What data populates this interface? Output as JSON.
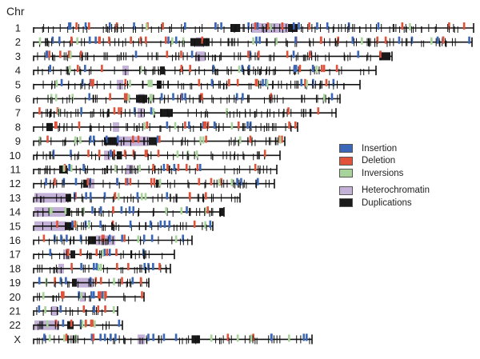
{
  "axis_title": "Chr",
  "legend": [
    {
      "label": "Insertion",
      "color": "#3a67b8"
    },
    {
      "label": "Deletion",
      "color": "#e0533a"
    },
    {
      "label": "Inversions",
      "color": "#a8d39a"
    },
    {
      "label": "Heterochromatin",
      "color": "#c4b1d8"
    },
    {
      "label": "Duplications",
      "color": "#1a1a1a"
    }
  ],
  "chromosomes": [
    {
      "label": "1",
      "end": 592,
      "hetero": [
        [
          314,
          360
        ]
      ],
      "dup": [
        [
          288,
          300
        ],
        [
          360,
          372
        ]
      ]
    },
    {
      "label": "2",
      "end": 590,
      "hetero": [
        [
          245,
          253
        ]
      ],
      "dup": [
        [
          238,
          262
        ]
      ]
    },
    {
      "label": "3",
      "end": 490,
      "hetero": [
        [
          245,
          256
        ]
      ],
      "dup": [
        [
          474,
          488
        ]
      ]
    },
    {
      "label": "4",
      "end": 470,
      "hetero": [
        [
          153,
          161
        ]
      ],
      "dup": [
        [
          200,
          206
        ]
      ]
    },
    {
      "label": "5",
      "end": 450,
      "hetero": [
        [
          146,
          154
        ]
      ],
      "dup": [
        [
          196,
          202
        ]
      ]
    },
    {
      "label": "6",
      "end": 425,
      "hetero": [
        [
          173,
          181
        ]
      ],
      "dup": [
        [
          170,
          184
        ]
      ]
    },
    {
      "label": "7",
      "end": 420,
      "hetero": [
        [
          172,
          180
        ]
      ],
      "dup": [
        [
          200,
          216
        ]
      ]
    },
    {
      "label": "8",
      "end": 372,
      "hetero": [
        [
          141,
          149
        ]
      ],
      "dup": [
        [
          58,
          66
        ]
      ]
    },
    {
      "label": "9",
      "end": 356,
      "hetero": [
        [
          146,
          186
        ]
      ],
      "dup": [
        [
          130,
          146
        ],
        [
          186,
          196
        ]
      ]
    },
    {
      "label": "10",
      "end": 350,
      "hetero": [
        [
          130,
          138
        ]
      ],
      "dup": [
        [
          146,
          152
        ]
      ]
    },
    {
      "label": "11",
      "end": 346,
      "hetero": [
        [
          158,
          166
        ]
      ],
      "dup": [
        [
          74,
          84
        ]
      ]
    },
    {
      "label": "12",
      "end": 343,
      "hetero": [
        [
          110,
          118
        ]
      ],
      "dup": [
        [
          104,
          110
        ]
      ]
    },
    {
      "label": "13",
      "end": 300,
      "hetero": [
        [
          43,
          82
        ]
      ],
      "dup": [
        [
          82,
          88
        ]
      ]
    },
    {
      "label": "14",
      "end": 280,
      "hetero": [
        [
          43,
          82
        ]
      ],
      "dup": [
        [
          82,
          88
        ],
        [
          274,
          280
        ]
      ]
    },
    {
      "label": "15",
      "end": 266,
      "hetero": [
        [
          43,
          82
        ]
      ],
      "dup": [
        [
          82,
          92
        ]
      ]
    },
    {
      "label": "16",
      "end": 240,
      "hetero": [
        [
          120,
          144
        ]
      ],
      "dup": [
        [
          110,
          120
        ]
      ]
    },
    {
      "label": "17",
      "end": 218,
      "hetero": [
        [
          79,
          87
        ]
      ],
      "dup": [
        [
          88,
          94
        ]
      ]
    },
    {
      "label": "18",
      "end": 213,
      "hetero": [
        [
          73,
          80
        ]
      ],
      "dup": []
    },
    {
      "label": "19",
      "end": 186,
      "hetero": [
        [
          96,
          116
        ]
      ],
      "dup": [
        [
          90,
          96
        ]
      ]
    },
    {
      "label": "20",
      "end": 180,
      "hetero": [
        [
          100,
          107
        ]
      ],
      "dup": []
    },
    {
      "label": "21",
      "end": 147,
      "hetero": [
        [
          64,
          72
        ]
      ],
      "dup": []
    },
    {
      "label": "22",
      "end": 153,
      "hetero": [
        [
          43,
          74
        ]
      ],
      "dup": [
        [
          84,
          92
        ]
      ]
    },
    {
      "label": "X",
      "end": 390,
      "hetero": [
        [
          172,
          181
        ]
      ],
      "dup": [
        [
          240,
          250
        ]
      ]
    }
  ]
}
